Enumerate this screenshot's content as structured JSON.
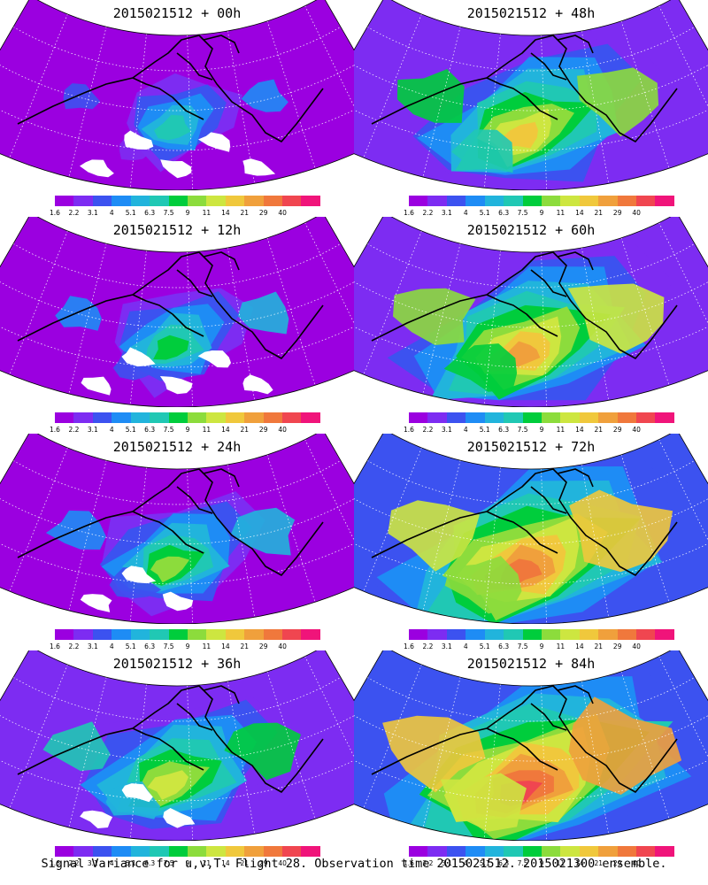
{
  "caption": "Signal Variance for u,v,T. Flight 28. Observation time 2015021512. 2015021300 ensemble.",
  "colorbar": {
    "labels": [
      "1.6",
      "2.2",
      "3.1",
      "4",
      "5.1",
      "6.3",
      "7.5",
      "9",
      "11",
      "14",
      "21",
      "29",
      "40"
    ],
    "colors": [
      "#9b00e0",
      "#7d2cf2",
      "#3c52f0",
      "#1e8cf5",
      "#21b4dc",
      "#20c8b4",
      "#00cd3c",
      "#8cdc3c",
      "#cde640",
      "#f0c83c",
      "#f0a03c",
      "#f0783c",
      "#f04650",
      "#f0147a"
    ]
  },
  "panels": [
    {
      "id": "p00",
      "title": "2015021512 + 00h",
      "lead": 0
    },
    {
      "id": "p48",
      "title": "2015021512 + 48h",
      "lead": 48
    },
    {
      "id": "p12",
      "title": "2015021512 + 12h",
      "lead": 12
    },
    {
      "id": "p60",
      "title": "2015021512 + 60h",
      "lead": 60
    },
    {
      "id": "p24",
      "title": "2015021512 + 24h",
      "lead": 24
    },
    {
      "id": "p72",
      "title": "2015021512 + 72h",
      "lead": 72
    },
    {
      "id": "p36",
      "title": "2015021512 + 36h",
      "lead": 36
    },
    {
      "id": "p84",
      "title": "2015021512 + 84h",
      "lead": 84
    }
  ]
}
